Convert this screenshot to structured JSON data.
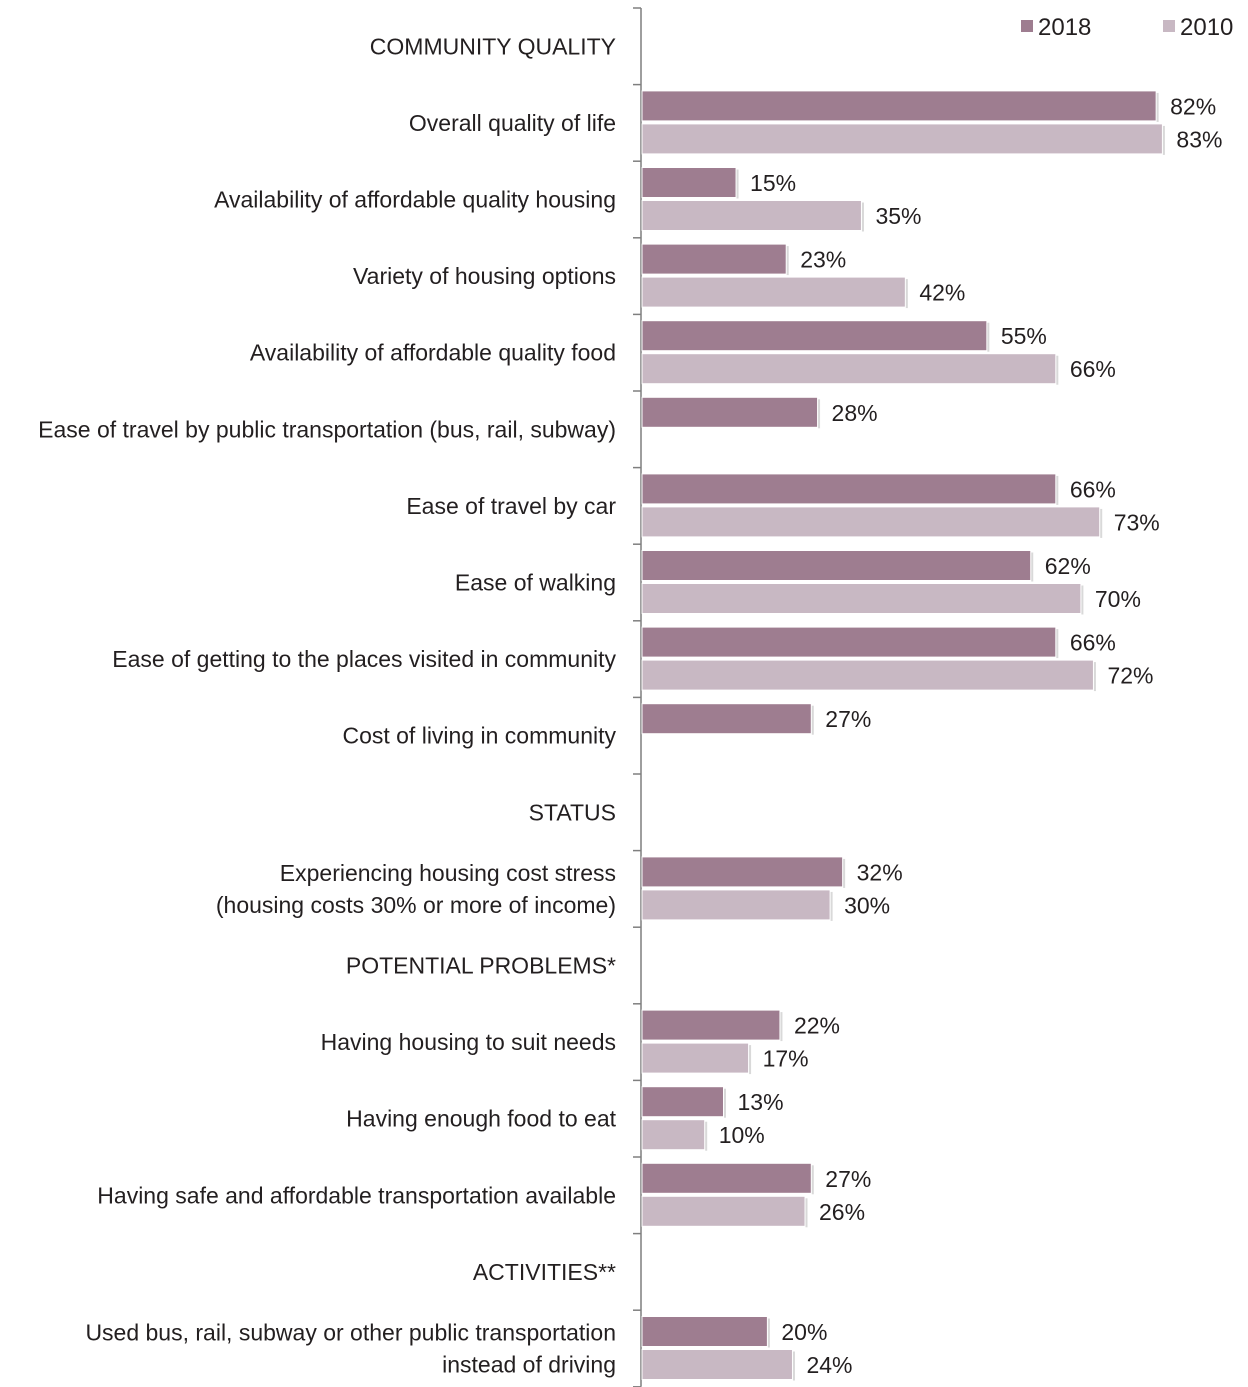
{
  "chart_data": {
    "type": "bar",
    "orientation": "horizontal",
    "legend": {
      "position": "top-right"
    },
    "series": [
      {
        "name": "2018",
        "color": "#9e7d90"
      },
      {
        "name": "2010",
        "color": "#c8b8c3"
      }
    ],
    "xlim": [
      0,
      100
    ],
    "grid": false,
    "rows": [
      {
        "label": [
          "COMMUNITY QUALITY"
        ],
        "header": true
      },
      {
        "label": [
          "Overall quality of life"
        ],
        "values": [
          82,
          83
        ],
        "value_labels": [
          "82%",
          "83%"
        ]
      },
      {
        "label": [
          "Availability of affordable quality housing"
        ],
        "values": [
          15,
          35
        ],
        "value_labels": [
          "15%",
          "35%"
        ]
      },
      {
        "label": [
          "Variety of housing options"
        ],
        "values": [
          23,
          42
        ],
        "value_labels": [
          "23%",
          "42%"
        ]
      },
      {
        "label": [
          "Availability of affordable quality food"
        ],
        "values": [
          55,
          66
        ],
        "value_labels": [
          "55%",
          "66%"
        ]
      },
      {
        "label": [
          "Ease of travel by public transportation (bus, rail, subway)"
        ],
        "values": [
          28,
          null
        ],
        "value_labels": [
          "28%",
          null
        ]
      },
      {
        "label": [
          "Ease of travel by car"
        ],
        "values": [
          66,
          73
        ],
        "value_labels": [
          "66%",
          "73%"
        ]
      },
      {
        "label": [
          "Ease of walking"
        ],
        "values": [
          62,
          70
        ],
        "value_labels": [
          "62%",
          "70%"
        ]
      },
      {
        "label": [
          "Ease of getting to the places visited in community"
        ],
        "values": [
          66,
          72
        ],
        "value_labels": [
          "66%",
          "72%"
        ]
      },
      {
        "label": [
          "Cost of living in community"
        ],
        "values": [
          27,
          null
        ],
        "value_labels": [
          "27%",
          null
        ]
      },
      {
        "label": [
          "STATUS"
        ],
        "header": true
      },
      {
        "label": [
          "Experiencing housing cost stress",
          "(housing costs 30% or more of income)"
        ],
        "values": [
          32,
          30
        ],
        "value_labels": [
          "32%",
          "30%"
        ]
      },
      {
        "label": [
          "POTENTIAL PROBLEMS*"
        ],
        "header": true
      },
      {
        "label": [
          "Having housing to suit needs"
        ],
        "values": [
          22,
          17
        ],
        "value_labels": [
          "22%",
          "17%"
        ]
      },
      {
        "label": [
          "Having enough food to eat"
        ],
        "values": [
          13,
          10
        ],
        "value_labels": [
          "13%",
          "10%"
        ]
      },
      {
        "label": [
          "Having safe and affordable transportation available"
        ],
        "values": [
          27,
          26
        ],
        "value_labels": [
          "27%",
          "26%"
        ]
      },
      {
        "label": [
          "ACTIVITIES**"
        ],
        "header": true
      },
      {
        "label": [
          "Used bus, rail, subway or other public transportation",
          "instead of driving"
        ],
        "values": [
          20,
          24
        ],
        "value_labels": [
          "20%",
          "24%"
        ]
      }
    ]
  }
}
